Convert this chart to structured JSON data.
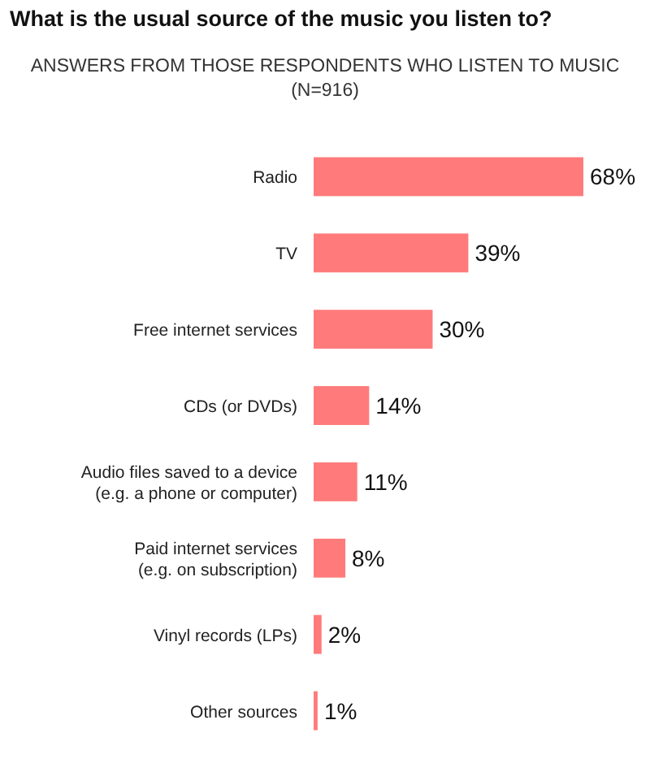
{
  "chart_data": {
    "type": "bar",
    "orientation": "horizontal",
    "title": "What is the usual source of the music you listen to?",
    "subtitle": "ANSWERS FROM THOSE RESPONDENTS WHO LISTEN TO MUSIC\n(N=916)",
    "categories": [
      "Radio",
      "TV",
      "Free internet services",
      "CDs (or DVDs)",
      "Audio files saved to a device\n(e.g. a phone or computer)",
      "Paid internet services\n(e.g. on subscription)",
      "Vinyl records (LPs)",
      "Other sources"
    ],
    "values": [
      68,
      39,
      30,
      14,
      11,
      8,
      2,
      1
    ],
    "value_labels": [
      "68%",
      "39%",
      "30%",
      "14%",
      "11%",
      "8%",
      "2%",
      "1%"
    ],
    "color": "#ff7b7b"
  }
}
